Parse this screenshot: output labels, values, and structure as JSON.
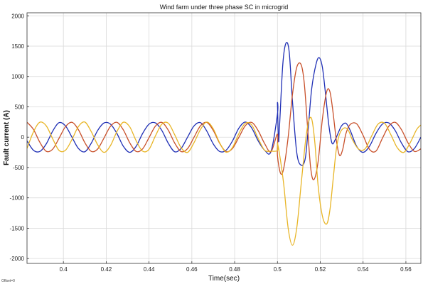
{
  "chart_data": {
    "type": "line",
    "title": "Wind farm under three phase SC in microgrid",
    "xlabel": "Time(sec)",
    "ylabel": "Fault current (A)",
    "xlim": [
      0.383,
      0.567
    ],
    "ylim": [
      -2080,
      2050
    ],
    "x_ticks": [
      0.4,
      0.42,
      0.44,
      0.46,
      0.48,
      0.5,
      0.52,
      0.54,
      0.56
    ],
    "y_ticks": [
      -2000,
      -1500,
      -1000,
      -500,
      0,
      500,
      1000,
      1500,
      2000
    ],
    "x_tick_labels": [
      "0.4",
      "0.42",
      "0.44",
      "0.46",
      "0.48",
      "0.5",
      "0.52",
      "0.54",
      "0.56"
    ],
    "y_tick_labels": [
      "-2000",
      "-1500",
      "-1000",
      "-500",
      "0",
      "500",
      "1000",
      "1500",
      "2000"
    ],
    "grid": true,
    "legend": "none",
    "footer_text": "Offset=0",
    "colors": {
      "background": "#ffffff",
      "grid": "#d9d9d9",
      "axes": "#333333",
      "series_blue": "#1f2fb5",
      "series_red": "#c8502a",
      "series_yellow": "#e8b526"
    },
    "series": [
      {
        "color": "#1f2fb5",
        "x": [
          0.383,
          0.386,
          0.389,
          0.392,
          0.395,
          0.398,
          0.401,
          0.404,
          0.407,
          0.41,
          0.413,
          0.416,
          0.419,
          0.422,
          0.425,
          0.428,
          0.431,
          0.434,
          0.437,
          0.44,
          0.443,
          0.446,
          0.449,
          0.452,
          0.455,
          0.458,
          0.461,
          0.464,
          0.467,
          0.47,
          0.473,
          0.476,
          0.479,
          0.482,
          0.485,
          0.488,
          0.491,
          0.494,
          0.497,
          0.5,
          0.5,
          0.5005,
          0.501,
          0.5025,
          0.504,
          0.5055,
          0.507,
          0.509,
          0.511,
          0.513,
          0.5145,
          0.516,
          0.518,
          0.5195,
          0.521,
          0.5225,
          0.524,
          0.5255,
          0.527,
          0.5285,
          0.53,
          0.532,
          0.534,
          0.537,
          0.54,
          0.543,
          0.546,
          0.549,
          0.552,
          0.555,
          0.558,
          0.561,
          0.564,
          0.567
        ],
        "y": [
          -61,
          -215,
          -235,
          -110,
          100,
          240,
          185,
          0,
          -185,
          -240,
          -100,
          110,
          235,
          215,
          61,
          -150,
          -250,
          -150,
          61,
          215,
          235,
          110,
          -100,
          -240,
          -185,
          0,
          185,
          240,
          100,
          -110,
          -235,
          -215,
          -61,
          150,
          250,
          150,
          -61,
          -215,
          -235,
          380,
          550,
          -60,
          200,
          1200,
          1550,
          1400,
          600,
          -250,
          -460,
          -350,
          200,
          800,
          1200,
          1310,
          1150,
          700,
          200,
          -100,
          -40,
          80,
          190,
          230,
          110,
          -150,
          -250,
          -150,
          61,
          215,
          235,
          110,
          -100,
          -240,
          -185,
          0
        ]
      },
      {
        "color": "#c8502a",
        "x": [
          0.383,
          0.386,
          0.389,
          0.392,
          0.395,
          0.398,
          0.401,
          0.404,
          0.407,
          0.41,
          0.413,
          0.416,
          0.419,
          0.422,
          0.425,
          0.428,
          0.431,
          0.434,
          0.437,
          0.44,
          0.443,
          0.446,
          0.449,
          0.452,
          0.455,
          0.458,
          0.461,
          0.464,
          0.467,
          0.47,
          0.473,
          0.476,
          0.479,
          0.482,
          0.485,
          0.488,
          0.491,
          0.494,
          0.497,
          0.5,
          0.5,
          0.5015,
          0.503,
          0.505,
          0.507,
          0.509,
          0.511,
          0.5125,
          0.514,
          0.5155,
          0.517,
          0.519,
          0.521,
          0.523,
          0.5245,
          0.526,
          0.5275,
          0.529,
          0.5305,
          0.532,
          0.534,
          0.537,
          0.54,
          0.543,
          0.546,
          0.549,
          0.552,
          0.555,
          0.558,
          0.561,
          0.564,
          0.567
        ],
        "y": [
          246,
          128,
          -85,
          -233,
          -197,
          -15,
          175,
          245,
          124,
          -89,
          -234,
          -195,
          -11,
          180,
          245,
          120,
          -93,
          -235,
          -192,
          -7,
          183,
          244,
          115,
          -97,
          -237,
          -188,
          -3,
          186,
          244,
          112,
          -101,
          -238,
          -185,
          0,
          190,
          243,
          108,
          -105,
          -239,
          50,
          -300,
          -600,
          -500,
          0,
          700,
          1150,
          1200,
          900,
          200,
          -500,
          -700,
          -400,
          300,
          750,
          750,
          400,
          -50,
          -300,
          -200,
          60,
          210,
          220,
          30,
          -200,
          -230,
          -20,
          180,
          245,
          120,
          -93,
          -235,
          -192
        ]
      },
      {
        "color": "#e8b526",
        "x": [
          0.383,
          0.386,
          0.389,
          0.392,
          0.395,
          0.398,
          0.401,
          0.404,
          0.407,
          0.41,
          0.413,
          0.416,
          0.419,
          0.422,
          0.425,
          0.428,
          0.431,
          0.434,
          0.437,
          0.44,
          0.443,
          0.446,
          0.449,
          0.452,
          0.455,
          0.458,
          0.461,
          0.464,
          0.467,
          0.47,
          0.473,
          0.476,
          0.479,
          0.482,
          0.485,
          0.488,
          0.491,
          0.494,
          0.497,
          0.5,
          0.5,
          0.5015,
          0.503,
          0.505,
          0.507,
          0.509,
          0.511,
          0.513,
          0.5145,
          0.516,
          0.5175,
          0.519,
          0.521,
          0.523,
          0.5245,
          0.526,
          0.5275,
          0.529,
          0.531,
          0.533,
          0.535,
          0.538,
          0.541,
          0.544,
          0.547,
          0.55,
          0.553,
          0.556,
          0.559,
          0.562,
          0.565,
          0.567
        ],
        "y": [
          -185,
          87,
          247,
          186,
          -27,
          -220,
          -214,
          -38,
          175,
          250,
          92,
          -125,
          -250,
          -138,
          93,
          247,
          170,
          -60,
          -230,
          -200,
          22,
          215,
          230,
          40,
          -175,
          -250,
          -92,
          125,
          250,
          138,
          -93,
          -247,
          -170,
          60,
          230,
          200,
          -22,
          -215,
          -230,
          -220,
          -100,
          -400,
          -800,
          -1500,
          -1780,
          -1500,
          -800,
          -100,
          250,
          300,
          -100,
          -800,
          -1300,
          -1430,
          -1200,
          -700,
          -200,
          50,
          150,
          120,
          -40,
          -200,
          -190,
          20,
          215,
          230,
          40,
          -175,
          -250,
          -92,
          125,
          200
        ]
      }
    ]
  }
}
